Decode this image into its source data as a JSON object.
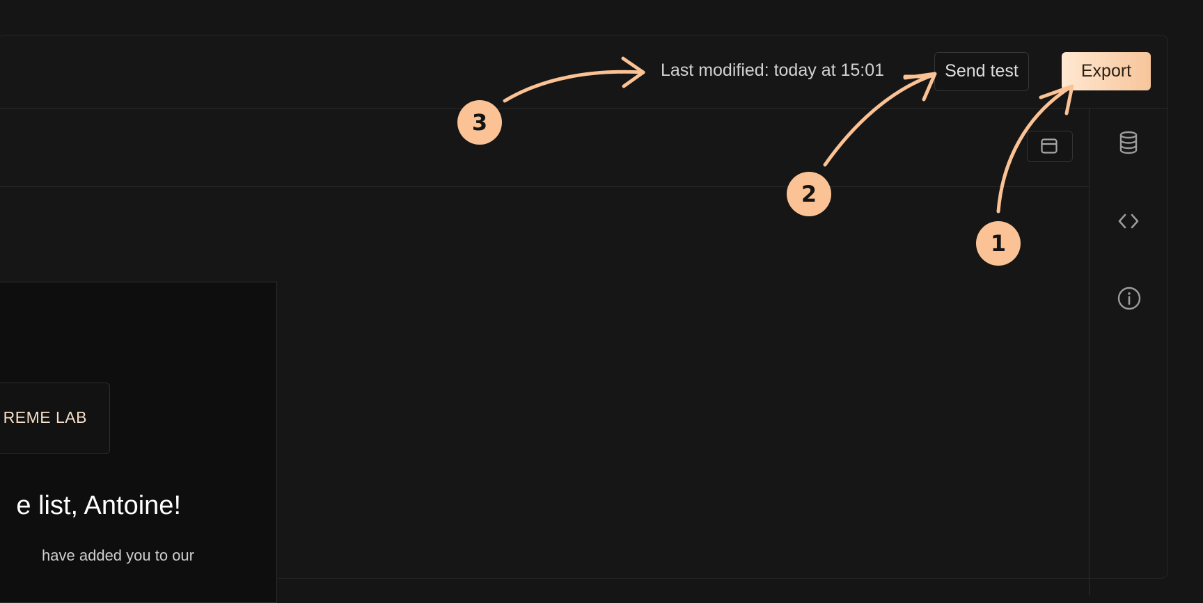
{
  "header": {
    "last_modified": "Last modified: today at 15:01",
    "send_test_label": "Send test",
    "export_label": "Export"
  },
  "email": {
    "brand_text": "REME LAB",
    "headline": "e list, Antoine!",
    "body_partial": "have added you to our"
  },
  "annotations": {
    "badges": [
      "1",
      "2",
      "3"
    ],
    "color": "#fbc395"
  },
  "icons": {
    "layout": "panel-layout-icon",
    "rail": [
      "database-icon",
      "code-icon",
      "info-icon"
    ]
  }
}
